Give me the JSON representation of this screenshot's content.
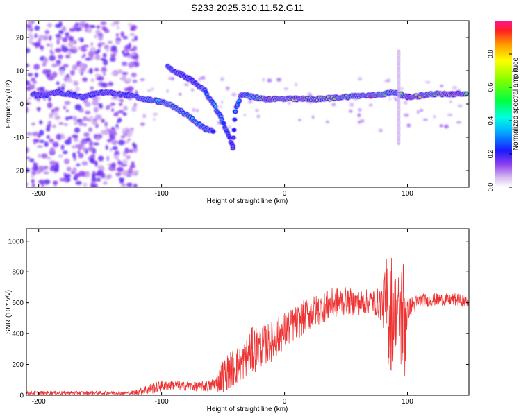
{
  "title": "S233.2025.310.11.52.G11",
  "chart_data": [
    {
      "type": "heatmap",
      "title": "S233.2025.310.11.52.G11",
      "xlabel": "Height of straight line (km)",
      "ylabel": "Frequency (Hz)",
      "xlim": [
        -210,
        150
      ],
      "ylim": [
        -25,
        25
      ],
      "xticks": [
        -200,
        -100,
        0,
        100
      ],
      "yticks": [
        20,
        10,
        0,
        -10,
        -20
      ],
      "colorbar": {
        "label": "Normalized spectral amplitude",
        "range": [
          0.0,
          1.0
        ],
        "ticks": [
          0.0,
          0.2,
          0.4,
          0.6,
          0.8
        ]
      },
      "ridge": [
        {
          "x": -205,
          "f": 3.0,
          "a": 0.18
        },
        {
          "x": -195,
          "f": 2.5,
          "a": 0.22
        },
        {
          "x": -185,
          "f": 3.5,
          "a": 0.2
        },
        {
          "x": -175,
          "f": 3.0,
          "a": 0.25
        },
        {
          "x": -165,
          "f": 2.0,
          "a": 0.2
        },
        {
          "x": -155,
          "f": 3.0,
          "a": 0.22
        },
        {
          "x": -145,
          "f": 3.5,
          "a": 0.2
        },
        {
          "x": -135,
          "f": 3.0,
          "a": 0.2
        },
        {
          "x": -125,
          "f": 2.5,
          "a": 0.25
        },
        {
          "x": -115,
          "f": 1.5,
          "a": 0.35
        },
        {
          "x": -105,
          "f": 1.0,
          "a": 0.4
        },
        {
          "x": -95,
          "f": 0.0,
          "a": 0.45
        },
        {
          "x": -85,
          "f": -2.0,
          "a": 0.45
        },
        {
          "x": -75,
          "f": -4.5,
          "a": 0.45
        },
        {
          "x": -65,
          "f": -7.5,
          "a": 0.35
        },
        {
          "x": -58,
          "f": -8.0,
          "a": 0.25
        },
        {
          "x": -95,
          "f": 11.0,
          "a": 0.25
        },
        {
          "x": -85,
          "f": 9.0,
          "a": 0.2
        },
        {
          "x": -75,
          "f": 7.0,
          "a": 0.2
        },
        {
          "x": -65,
          "f": 4.0,
          "a": 0.3
        },
        {
          "x": -58,
          "f": 0.0,
          "a": 0.35
        },
        {
          "x": -52,
          "f": -4.0,
          "a": 0.35
        },
        {
          "x": -47,
          "f": -8.0,
          "a": 0.25
        },
        {
          "x": -42,
          "f": -13.0,
          "a": 0.15
        },
        {
          "x": -40,
          "f": -2.0,
          "a": 0.3
        },
        {
          "x": -35,
          "f": 3.0,
          "a": 0.3
        },
        {
          "x": -25,
          "f": 2.0,
          "a": 0.45
        },
        {
          "x": -15,
          "f": 1.5,
          "a": 0.8
        },
        {
          "x": 0,
          "f": 1.5,
          "a": 0.75
        },
        {
          "x": 15,
          "f": 1.5,
          "a": 0.85
        },
        {
          "x": 30,
          "f": 1.5,
          "a": 0.75
        },
        {
          "x": 45,
          "f": 2.0,
          "a": 0.6
        },
        {
          "x": 60,
          "f": 2.5,
          "a": 0.6
        },
        {
          "x": 70,
          "f": 2.5,
          "a": 0.95
        },
        {
          "x": 80,
          "f": 3.0,
          "a": 0.5
        },
        {
          "x": 90,
          "f": 3.5,
          "a": 0.45
        },
        {
          "x": 100,
          "f": 2.0,
          "a": 0.9
        },
        {
          "x": 110,
          "f": 2.5,
          "a": 0.75
        },
        {
          "x": 120,
          "f": 3.0,
          "a": 0.55
        },
        {
          "x": 130,
          "f": 3.0,
          "a": 0.85
        },
        {
          "x": 140,
          "f": 3.0,
          "a": 0.95
        },
        {
          "x": 148,
          "f": 3.0,
          "a": 0.75
        }
      ]
    },
    {
      "type": "line",
      "xlabel": "Height of straight line (km)",
      "ylabel": "SNR (10 * v/v)",
      "xlim": [
        -210,
        150
      ],
      "ylim": [
        0,
        1080
      ],
      "xticks": [
        -200,
        -100,
        0,
        100
      ],
      "yticks": [
        0,
        200,
        400,
        600,
        800,
        1000
      ],
      "color": "#ee3333",
      "envelope": {
        "x": [
          -210,
          -125,
          -120,
          -110,
          -100,
          -90,
          -80,
          -70,
          -60,
          -55,
          -50,
          -45,
          -40,
          -35,
          -30,
          -25,
          -20,
          -10,
          0,
          10,
          20,
          30,
          40,
          50,
          60,
          70,
          75,
          80,
          85,
          88,
          90,
          93,
          95,
          98,
          100,
          110,
          120,
          130,
          140,
          150
        ],
        "mean": [
          15,
          15,
          20,
          40,
          60,
          65,
          60,
          55,
          60,
          80,
          130,
          160,
          190,
          200,
          260,
          300,
          310,
          350,
          420,
          470,
          530,
          560,
          600,
          610,
          600,
          610,
          600,
          600,
          580,
          560,
          550,
          550,
          520,
          500,
          560,
          610,
          620,
          620,
          620,
          610
        ],
        "amp": [
          12,
          12,
          20,
          35,
          35,
          30,
          30,
          30,
          40,
          60,
          110,
          120,
          130,
          120,
          130,
          160,
          130,
          130,
          120,
          110,
          110,
          100,
          100,
          90,
          80,
          80,
          90,
          130,
          450,
          400,
          250,
          250,
          400,
          450,
          70,
          50,
          40,
          40,
          40,
          40
        ]
      }
    }
  ]
}
